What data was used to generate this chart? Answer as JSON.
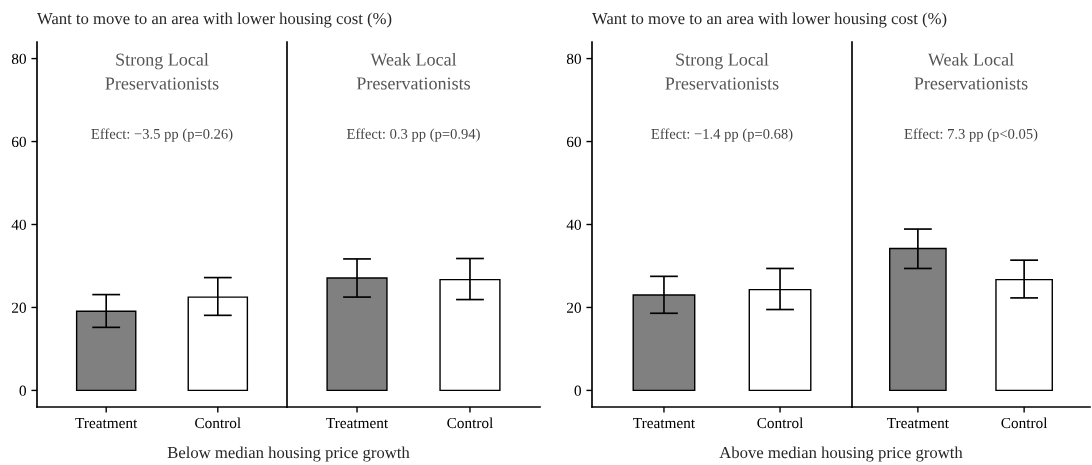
{
  "chart_data": [
    {
      "type": "bar",
      "title": "Strong Local\nPreservationists",
      "ylabel": "Want to move to an area with lower housing cost (%)",
      "xlabel": "Below median housing price growth",
      "categories": [
        "Treatment",
        "Control"
      ],
      "values": [
        19.1,
        22.5
      ],
      "errors": [
        [
          15.2,
          23.1
        ],
        [
          18.1,
          27.2
        ]
      ],
      "colors": [
        "#808080",
        "#ffffff"
      ],
      "ylim": [
        -4,
        84
      ],
      "yticks": [
        0,
        20,
        40,
        60,
        80
      ],
      "annotations": [
        "Effect: −3.5 pp (p=0.26)"
      ]
    },
    {
      "type": "bar",
      "title": "Weak Local\nPreservationists",
      "categories": [
        "Treatment",
        "Control"
      ],
      "values": [
        27.1,
        26.7
      ],
      "errors": [
        [
          22.5,
          31.7
        ],
        [
          21.9,
          31.8
        ]
      ],
      "colors": [
        "#808080",
        "#ffffff"
      ],
      "ylim": [
        -4,
        84
      ],
      "tick_labels": "x",
      "annotations": [
        "Effect: 0.3 pp (p=0.94)"
      ]
    },
    {
      "type": "bar",
      "title": "Strong Local\nPreservationists",
      "ylabel": "Want to move to an area with lower housing cost (%)",
      "xlabel": "Above median housing price growth",
      "categories": [
        "Treatment",
        "Control"
      ],
      "values": [
        23.0,
        24.3
      ],
      "errors": [
        [
          18.6,
          27.5
        ],
        [
          19.5,
          29.4
        ]
      ],
      "colors": [
        "#808080",
        "#ffffff"
      ],
      "ylim": [
        -4,
        84
      ],
      "yticks": [
        0,
        20,
        40,
        60,
        80
      ],
      "annotations": [
        "Effect: −1.4 pp (p=0.68)"
      ]
    },
    {
      "type": "bar",
      "title": "Weak Local\nPreservationists",
      "categories": [
        "Treatment",
        "Control"
      ],
      "values": [
        34.2,
        26.7
      ],
      "errors": [
        [
          29.4,
          38.9
        ],
        [
          22.3,
          31.4
        ]
      ],
      "colors": [
        "#808080",
        "#ffffff"
      ],
      "ylim": [
        -4,
        84
      ],
      "tick_labels": "x",
      "annotations": [
        "Effect: 7.3 pp (p<0.05)"
      ]
    }
  ]
}
